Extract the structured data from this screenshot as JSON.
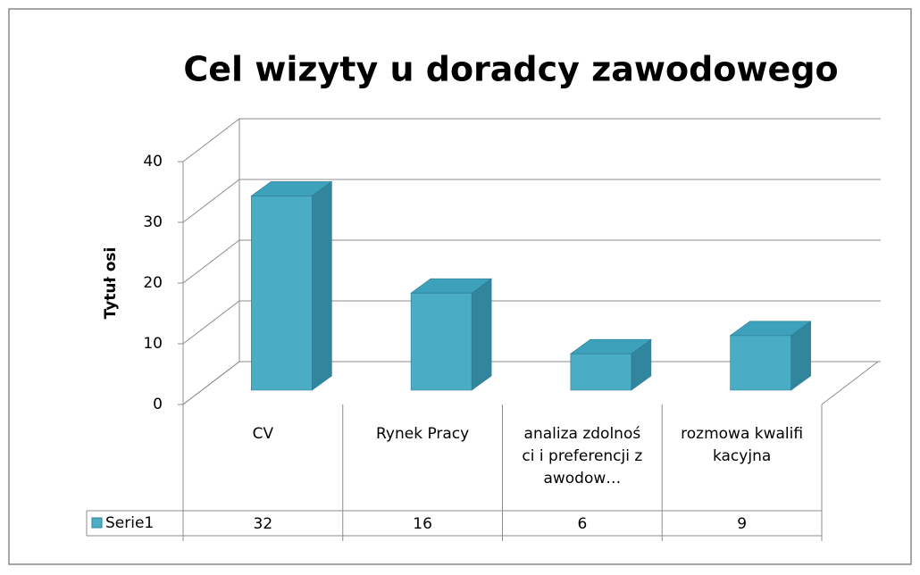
{
  "chart_data": {
    "type": "bar3d",
    "title": "Cel wizyty u doradcy zawodowego",
    "y_label": "Tytuł osi",
    "categories": [
      "CV",
      "Rynek Pracy",
      "analiza zdolności i preferencji zawodow…",
      "rozmowa kwalifikacyjna"
    ],
    "series": [
      {
        "name": "Serie1",
        "color": "#4bacc6",
        "values": [
          32,
          16,
          6,
          9
        ]
      }
    ],
    "ylim": [
      0,
      40
    ],
    "yticks": [
      0,
      10,
      20,
      30,
      40
    ],
    "grid": true,
    "data_table": true
  }
}
